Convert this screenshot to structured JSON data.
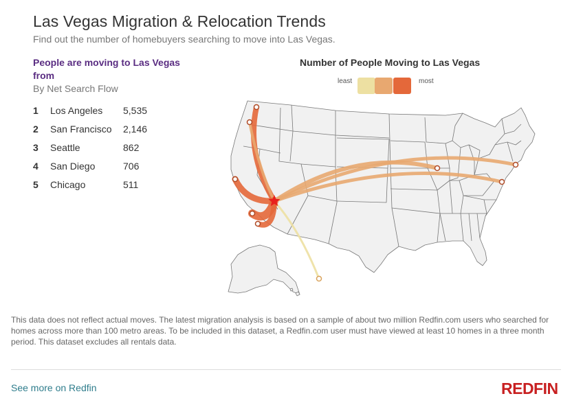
{
  "header": {
    "title": "Las Vegas Migration & Relocation Trends",
    "subtitle": "Find out the number of homebuyers searching to move into Las Vegas."
  },
  "list": {
    "heading": "People are moving to Las Vegas from",
    "subheading": "By Net Search Flow",
    "items": [
      {
        "rank": "1",
        "city": "Los Angeles",
        "value": "5,535"
      },
      {
        "rank": "2",
        "city": "San Francisco",
        "value": "2,146"
      },
      {
        "rank": "3",
        "city": "Seattle",
        "value": "862"
      },
      {
        "rank": "4",
        "city": "San Diego",
        "value": "706"
      },
      {
        "rank": "5",
        "city": "Chicago",
        "value": "511"
      }
    ]
  },
  "map": {
    "title": "Number of People Moving to Las Vegas",
    "legend_least": "least",
    "legend_most": "most",
    "legend_colors": [
      "#ede0a2",
      "#e8a870",
      "#e4683a"
    ],
    "destination_marker_color": "#e8201c",
    "state_fill": "#f1f1f1",
    "state_stroke": "#777777"
  },
  "footer": {
    "disclaimer": "This data does not reflect actual moves. The latest migration analysis is based on a sample of about two million Redfin.com users who searched for homes across more than 100 metro areas. To be included in this dataset, a Redfin.com user must have viewed at least 10 homes in a three month period. This dataset excludes all rentals data.",
    "link_label": "See more on Redfin",
    "logo_text": "REDFIN"
  }
}
